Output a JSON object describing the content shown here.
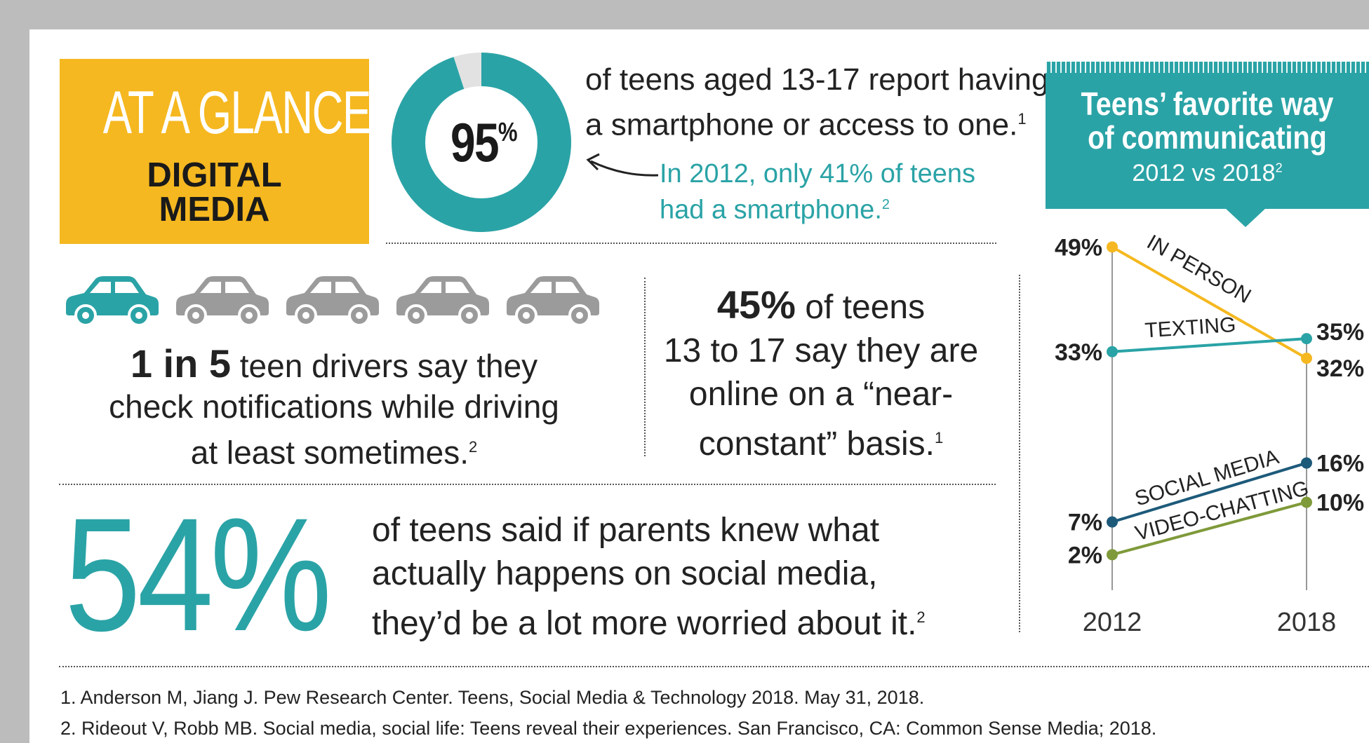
{
  "header": {
    "title_line1": "AT A GLANCE",
    "title_line2": "DIGITAL",
    "title_line3": "MEDIA"
  },
  "smartphone": {
    "stat": "95",
    "stat_unit": "%",
    "value": 95,
    "text_line1": "of teens aged 13-17 report having",
    "text_line2": "a smartphone or access to one.",
    "ref": "1",
    "note_line1": "In 2012, only 41% of teens",
    "note_line2": "had a smartphone.",
    "note_ref": "2"
  },
  "drivers": {
    "total_cars": 5,
    "highlighted_cars": 1,
    "stat": "1 in 5",
    "line1": " teen drivers say they",
    "line2": "check notifications while driving",
    "line3": "at least sometimes.",
    "ref": "2"
  },
  "online": {
    "stat": "45%",
    "line1": " of teens",
    "line2": "13 to 17 say they are",
    "line3": "online on a “near-",
    "line4": "constant” basis.",
    "ref": "1"
  },
  "parents": {
    "stat": "54%",
    "line1": "of teens said if parents knew what",
    "line2": "actually happens on social media,",
    "line3": "they’d be a lot more worried about it.",
    "ref": "2"
  },
  "chart_banner": {
    "title_line1": "Teens’ favorite way",
    "title_line2": "of communicating",
    "subtitle": "2012 vs 2018",
    "ref": "2"
  },
  "chart_data": {
    "type": "line",
    "title": "Teens’ favorite way of communicating",
    "subtitle": "2012 vs 2018",
    "x": [
      "2012",
      "2018"
    ],
    "ylim": [
      0,
      50
    ],
    "series": [
      {
        "name": "IN PERSON",
        "values": [
          49,
          32
        ],
        "labels": [
          "49%",
          "32%"
        ],
        "color": "#f5b820"
      },
      {
        "name": "TEXTING",
        "values": [
          33,
          35
        ],
        "labels": [
          "33%",
          "35%"
        ],
        "color": "#2aa3a6"
      },
      {
        "name": "SOCIAL MEDIA",
        "values": [
          7,
          16
        ],
        "labels": [
          "7%",
          "16%"
        ],
        "color": "#1d5a7a"
      },
      {
        "name": "VIDEO-CHATTING",
        "values": [
          2,
          10
        ],
        "labels": [
          "2%",
          "10%"
        ],
        "color": "#7f9a3a"
      }
    ]
  },
  "footnotes": [
    "1. Anderson M, Jiang J. Pew Research Center. Teens, Social Media & Technology 2018. May 31, 2018.",
    "2. Rideout V,  Robb MB. Social media, social life: Teens reveal their experiences. San Francisco, CA: Common Sense Media; 2018."
  ],
  "colors": {
    "accent": "#2aa3a6",
    "yellow": "#f5b820",
    "gray_car": "#9b9b9b"
  }
}
